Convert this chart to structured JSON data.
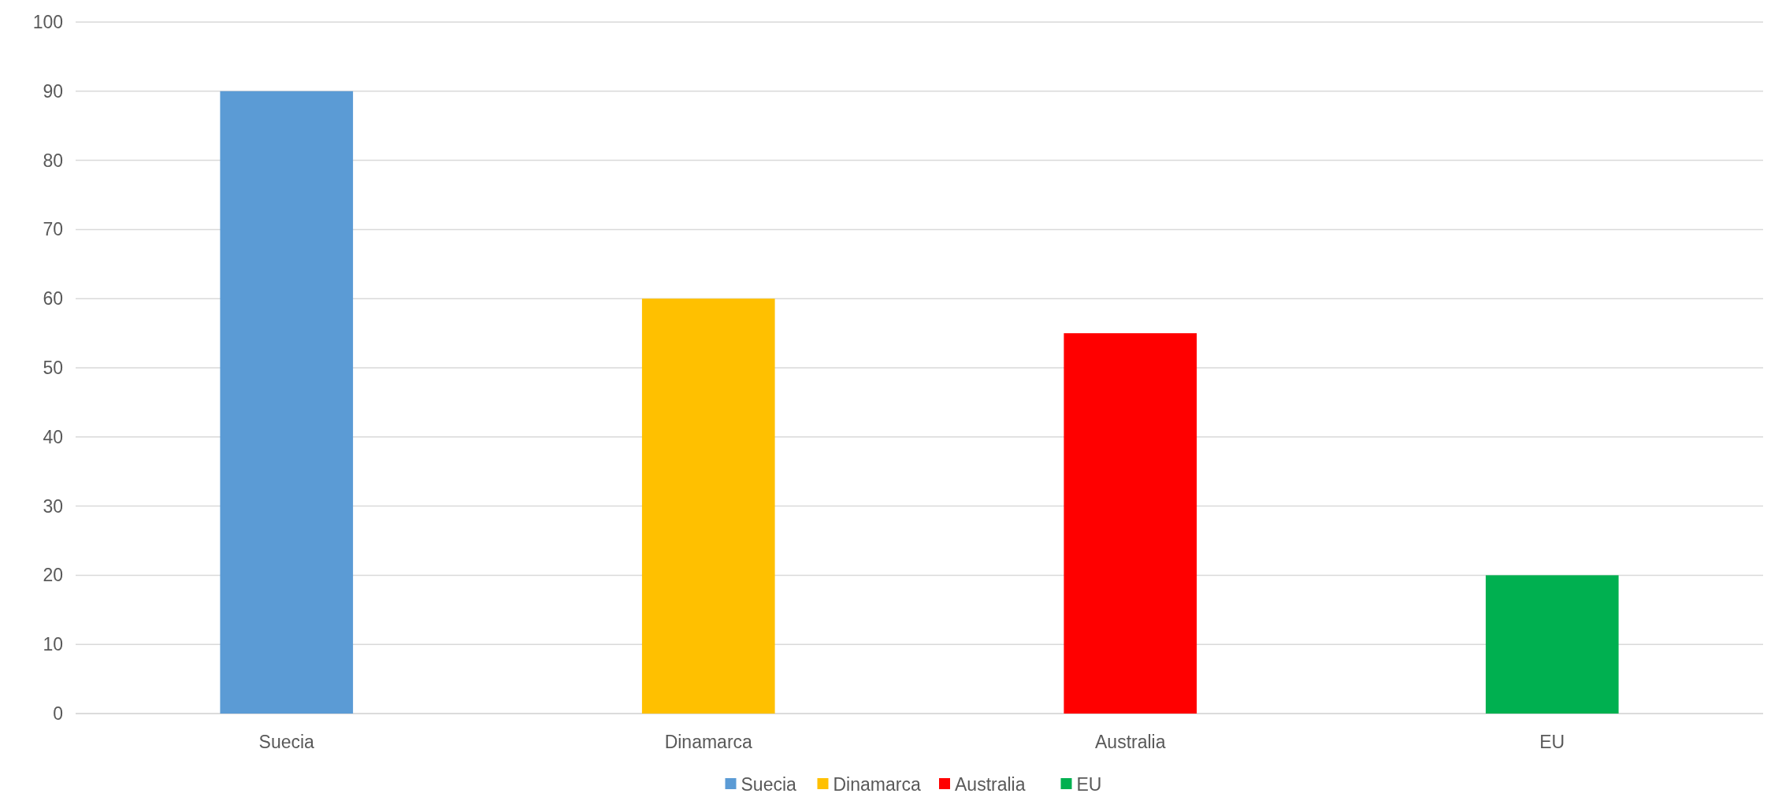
{
  "chart_data": {
    "type": "bar",
    "categories": [
      "Suecia",
      "Dinamarca",
      "Australia",
      "EU"
    ],
    "stacked": true,
    "series": [
      {
        "name": "Suecia",
        "color": "#5b9bd5",
        "values": [
          90,
          null,
          null,
          null
        ]
      },
      {
        "name": "Dinamarca",
        "color": "#ffc000",
        "values": [
          null,
          60,
          null,
          null
        ]
      },
      {
        "name": "Australia",
        "color": "#ff0000",
        "values": [
          null,
          null,
          55,
          null
        ]
      },
      {
        "name": "EU",
        "color": "#00b050",
        "values": [
          null,
          null,
          null,
          20
        ]
      }
    ],
    "ylim": [
      0,
      100
    ],
    "yticks": [
      0,
      10,
      20,
      30,
      40,
      50,
      60,
      70,
      80,
      90,
      100
    ],
    "grid": "y",
    "legend": "bottom"
  }
}
